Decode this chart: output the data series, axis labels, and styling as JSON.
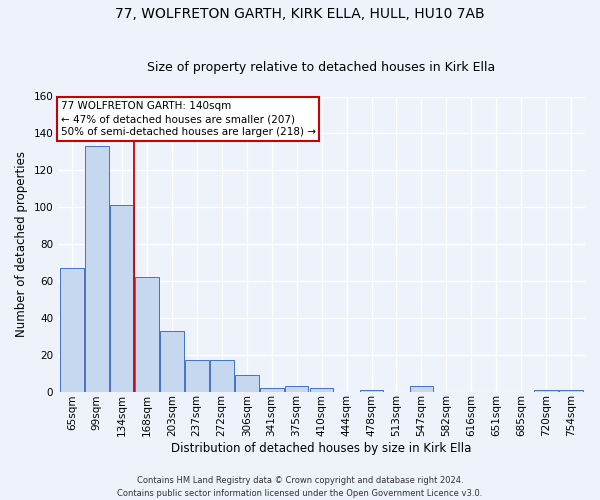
{
  "title_line1": "77, WOLFRETON GARTH, KIRK ELLA, HULL, HU10 7AB",
  "title_line2": "Size of property relative to detached houses in Kirk Ella",
  "xlabel": "Distribution of detached houses by size in Kirk Ella",
  "ylabel": "Number of detached properties",
  "categories": [
    "65sqm",
    "99sqm",
    "134sqm",
    "168sqm",
    "203sqm",
    "237sqm",
    "272sqm",
    "306sqm",
    "341sqm",
    "375sqm",
    "410sqm",
    "444sqm",
    "478sqm",
    "513sqm",
    "547sqm",
    "582sqm",
    "616sqm",
    "651sqm",
    "685sqm",
    "720sqm",
    "754sqm"
  ],
  "values": [
    67,
    133,
    101,
    62,
    33,
    17,
    17,
    9,
    2,
    3,
    2,
    0,
    1,
    0,
    3,
    0,
    0,
    0,
    0,
    1,
    1
  ],
  "bar_color": "#c5d8f0",
  "bar_edge_color": "#4472c4",
  "red_line_x": 2.5,
  "ylim": [
    0,
    160
  ],
  "yticks": [
    0,
    20,
    40,
    60,
    80,
    100,
    120,
    140,
    160
  ],
  "annotation_text": "77 WOLFRETON GARTH: 140sqm\n← 47% of detached houses are smaller (207)\n50% of semi-detached houses are larger (218) →",
  "annotation_box_color": "#ffffff",
  "annotation_box_edge": "#cc0000",
  "footer_line1": "Contains HM Land Registry data © Crown copyright and database right 2024.",
  "footer_line2": "Contains public sector information licensed under the Open Government Licence v3.0.",
  "background_color": "#eef2fb",
  "grid_color": "#ffffff",
  "title_fontsize": 10,
  "subtitle_fontsize": 9,
  "tick_fontsize": 7.5,
  "ylabel_fontsize": 8.5,
  "xlabel_fontsize": 8.5,
  "footer_fontsize": 6,
  "annotation_fontsize": 7.5
}
